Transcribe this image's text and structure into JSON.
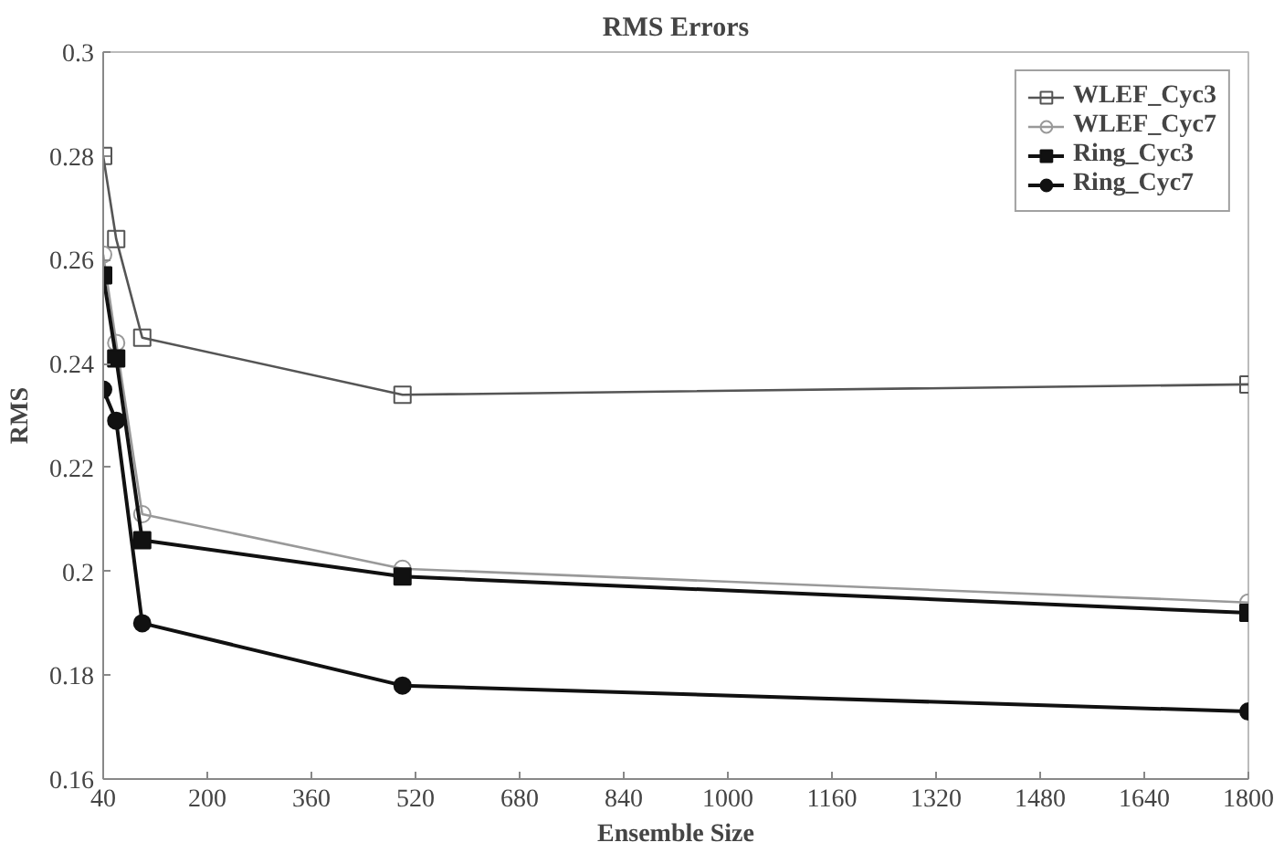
{
  "chart_data": {
    "type": "line",
    "title": "RMS Errors",
    "xlabel": "Ensemble Size",
    "ylabel": "RMS",
    "x": [
      40,
      60,
      100,
      500,
      1800
    ],
    "series": [
      {
        "name": "WLEF_Cyc3",
        "color": "#555555",
        "marker": "square",
        "values": [
          0.28,
          0.264,
          0.245,
          0.234,
          0.236
        ]
      },
      {
        "name": "WLEF_Cyc7",
        "color": "#999999",
        "marker": "circle",
        "values": [
          0.261,
          0.244,
          0.211,
          0.2005,
          0.194
        ]
      },
      {
        "name": "Ring_Cyc3",
        "color": "#111111",
        "marker": "square",
        "values": [
          0.257,
          0.241,
          0.206,
          0.199,
          0.192
        ]
      },
      {
        "name": "Ring_Cyc7",
        "color": "#111111",
        "marker": "circle",
        "values": [
          0.235,
          0.229,
          0.19,
          0.178,
          0.173
        ]
      }
    ],
    "xlim": [
      40,
      1800
    ],
    "xticks": [
      40,
      200,
      360,
      520,
      680,
      840,
      1000,
      1160,
      1320,
      1480,
      1640,
      1800
    ],
    "ylim": [
      0.16,
      0.3
    ],
    "yticks": [
      0.16,
      0.18,
      0.2,
      0.22,
      0.24,
      0.26,
      0.28,
      0.3
    ],
    "grid": false,
    "legend": "top right",
    "line_style": "solid"
  }
}
